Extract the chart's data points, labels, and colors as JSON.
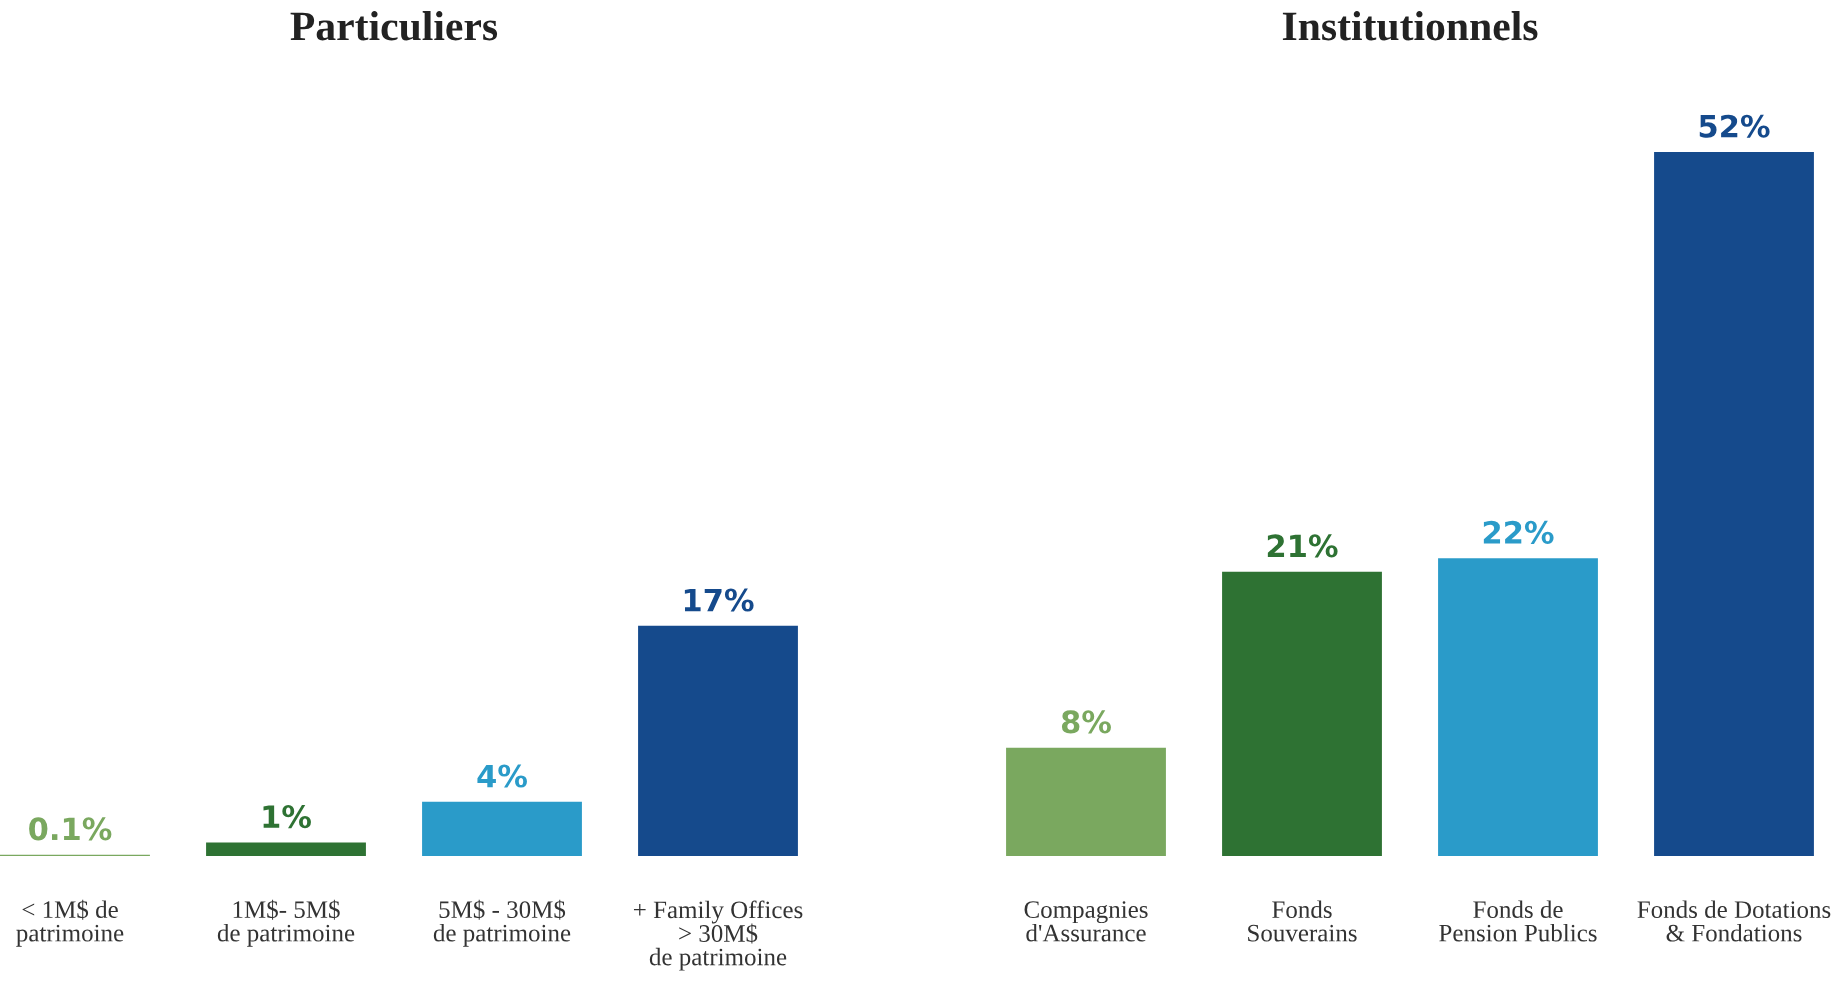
{
  "chart_data": [
    {
      "type": "bar",
      "title": "Particuliers",
      "categories": [
        "< 1M$ de\npatrimoine",
        "1M$- 5M$\nde patrimoine",
        "5M$ - 30M$\nde patrimoine",
        "+ Family Offices\n> 30M$\nde patrimoine"
      ],
      "values": [
        0.1,
        1,
        4,
        17
      ],
      "colors": [
        "#7aa85f",
        "#2e7233",
        "#2a9bc9",
        "#154a8c"
      ],
      "value_labels": [
        "0.1%",
        "1%",
        "4%",
        "17%"
      ]
    },
    {
      "type": "bar",
      "title": "Institutionnels",
      "categories": [
        "Compagnies\nd'Assurance",
        "Fonds\nSouverains",
        "Fonds de\nPension Publics",
        "Fonds de Dotations\n& Fondations"
      ],
      "values": [
        8,
        21,
        22,
        52
      ],
      "colors": [
        "#7aa85f",
        "#2e7233",
        "#2a9bc9",
        "#154a8c"
      ],
      "value_labels": [
        "8%",
        "21%",
        "22%",
        "52%"
      ]
    }
  ]
}
